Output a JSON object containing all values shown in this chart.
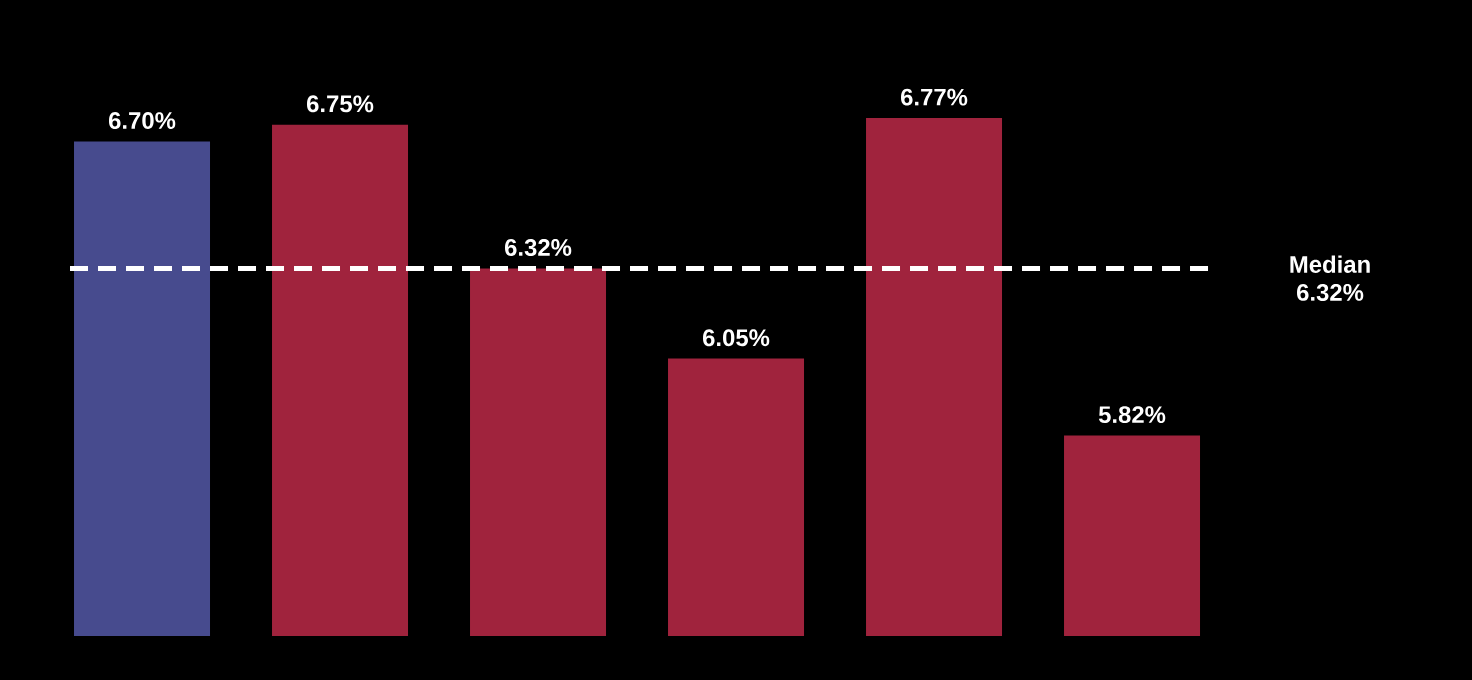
{
  "chart_data": {
    "type": "bar",
    "categories": [
      null,
      null,
      null,
      null,
      null,
      null
    ],
    "values": [
      6.7,
      6.75,
      6.32,
      6.05,
      6.77,
      5.82
    ],
    "colors": [
      "#474b8e",
      "#a0233d",
      "#a0233d",
      "#a0233d",
      "#a0233d",
      "#a0233d"
    ],
    "ylim": [
      5.22,
      6.77
    ],
    "value_labels": [
      "6.70%",
      "6.75%",
      "6.32%",
      "6.05%",
      "6.77%",
      "5.82%"
    ],
    "ref_lines": [
      {
        "axis": "y",
        "value": 6.32,
        "label": "Median 6.32%",
        "color": "#ffffff",
        "line_style": "dashed"
      }
    ]
  }
}
